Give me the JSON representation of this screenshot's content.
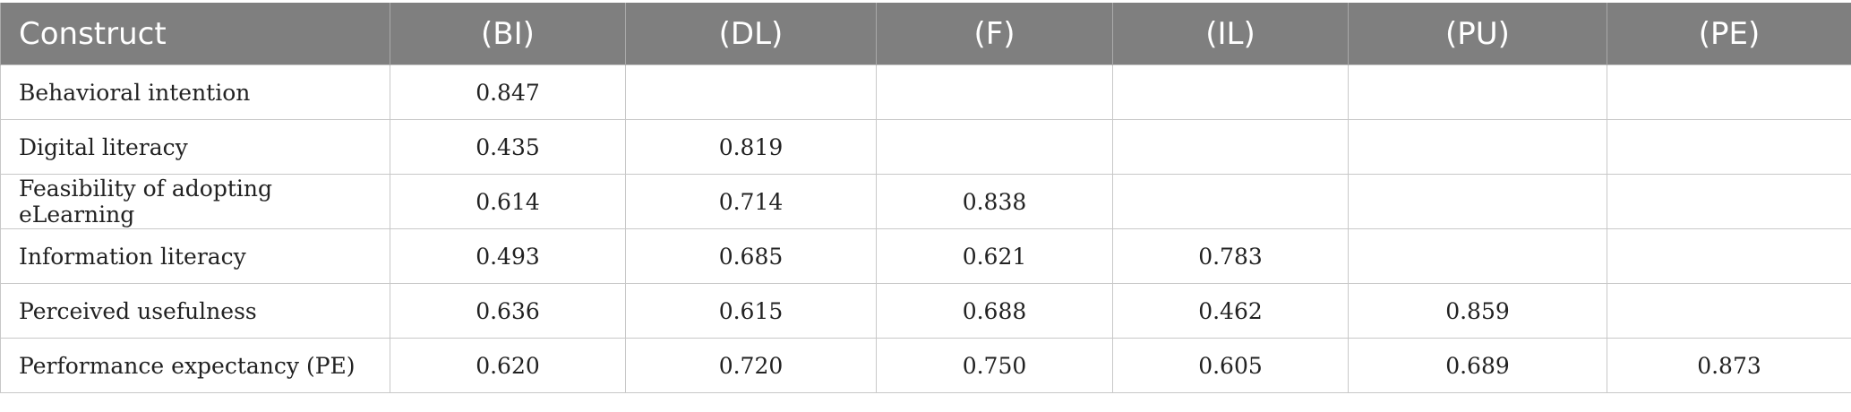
{
  "table": {
    "headers": [
      "Construct",
      "(BI)",
      "(DL)",
      "(F)",
      "(IL)",
      "(PU)",
      "(PE)"
    ],
    "rows": [
      [
        "Behavioral intention",
        "0.847",
        "",
        "",
        "",
        "",
        ""
      ],
      [
        "Digital literacy",
        "0.435",
        "0.819",
        "",
        "",
        "",
        ""
      ],
      [
        "Feasibility of adopting eLearning",
        "0.614",
        "0.714",
        "0.838",
        "",
        "",
        ""
      ],
      [
        "Information literacy",
        "0.493",
        "0.685",
        "0.621",
        "0.783",
        "",
        ""
      ],
      [
        "Perceived usefulness",
        "0.636",
        "0.615",
        "0.688",
        "0.462",
        "0.859",
        ""
      ],
      [
        "Performance expectancy (PE)",
        "0.620",
        "0.720",
        "0.750",
        "0.605",
        "0.689",
        "0.873"
      ]
    ]
  }
}
